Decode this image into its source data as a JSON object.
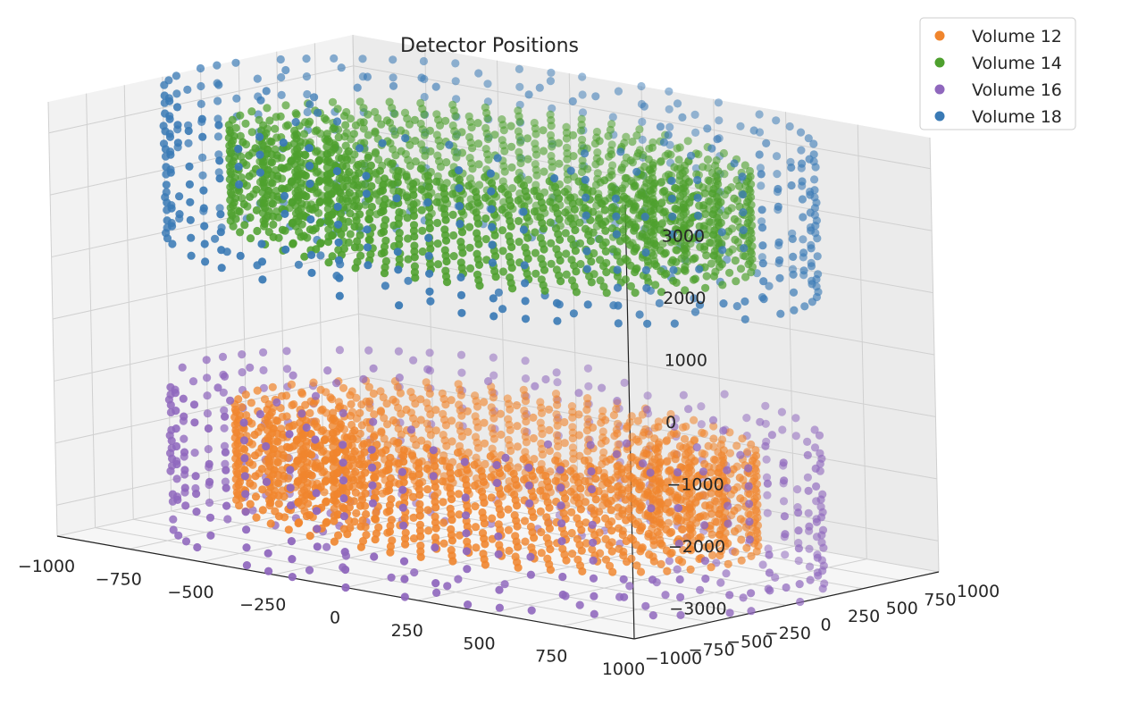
{
  "chart_data": {
    "type": "scatter",
    "projection": "3d",
    "title": "Detector Positions",
    "xlabel": "",
    "ylabel": "",
    "zlabel": "",
    "xlim": [
      -1000,
      1000
    ],
    "ylim": [
      -1000,
      1000
    ],
    "zlim": [
      -3500,
      3500
    ],
    "x_ticks": [
      "−1000",
      "−750",
      "−500",
      "−250",
      "0",
      "250",
      "500",
      "750",
      "1000"
    ],
    "y_ticks": [
      "−1000",
      "−750",
      "−500",
      "−250",
      "0",
      "250",
      "500",
      "750",
      "1000"
    ],
    "z_ticks": [
      "−3000",
      "−2000",
      "−1000",
      "0",
      "1000",
      "2000",
      "3000"
    ],
    "grid": true,
    "legend_position": "top-right",
    "series": [
      {
        "name": "Volume 12",
        "color": "#f0852d",
        "shape": "concentric-rings",
        "radii": [
          500,
          600,
          700,
          800
        ],
        "z_range": [
          -3000,
          -1500
        ],
        "z_layers": 10
      },
      {
        "name": "Volume 14",
        "color": "#4ea02e",
        "shape": "concentric-rings",
        "radii": [
          500,
          600,
          700,
          800
        ],
        "z_range": [
          1500,
          3000
        ],
        "z_layers": 10
      },
      {
        "name": "Volume 16",
        "color": "#8f67bd",
        "shape": "ring-with-endcaps",
        "radius": 1000,
        "z_range": [
          -3500,
          -1200
        ],
        "z_layers": 9
      },
      {
        "name": "Volume 18",
        "color": "#3a7ab5",
        "shape": "ring-with-endcaps",
        "radius": 1000,
        "z_range": [
          1200,
          3500
        ],
        "z_layers": 9
      }
    ]
  }
}
